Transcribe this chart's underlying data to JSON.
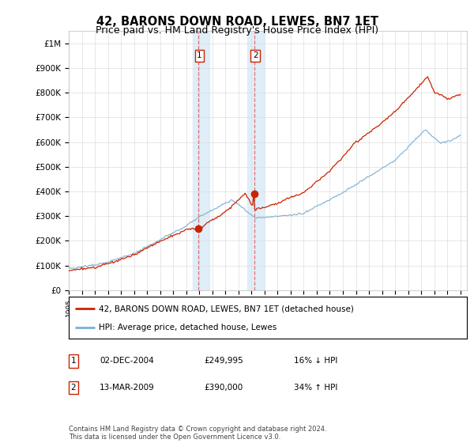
{
  "title": "42, BARONS DOWN ROAD, LEWES, BN7 1ET",
  "subtitle": "Price paid vs. HM Land Registry's House Price Index (HPI)",
  "ylabel_ticks": [
    "£0",
    "£100K",
    "£200K",
    "£300K",
    "£400K",
    "£500K",
    "£600K",
    "£700K",
    "£800K",
    "£900K",
    "£1M"
  ],
  "ytick_values": [
    0,
    100000,
    200000,
    300000,
    400000,
    500000,
    600000,
    700000,
    800000,
    900000,
    1000000
  ],
  "ylim": [
    0,
    1050000
  ],
  "xlim_start": 1995.0,
  "xlim_end": 2025.5,
  "x_ticks": [
    1995,
    1996,
    1997,
    1998,
    1999,
    2000,
    2001,
    2002,
    2003,
    2004,
    2005,
    2006,
    2007,
    2008,
    2009,
    2010,
    2011,
    2012,
    2013,
    2014,
    2015,
    2016,
    2017,
    2018,
    2019,
    2020,
    2021,
    2022,
    2023,
    2024,
    2025
  ],
  "hpi_color": "#7bafd4",
  "sale_color": "#cc2200",
  "sale1_x": 2004.92,
  "sale1_y": 249995,
  "sale2_x": 2009.2,
  "sale2_y": 390000,
  "shade_x1_start": 2004.5,
  "shade_x1_end": 2005.75,
  "shade_x2_start": 2008.7,
  "shade_x2_end": 2009.95,
  "legend_label_sale": "42, BARONS DOWN ROAD, LEWES, BN7 1ET (detached house)",
  "legend_label_hpi": "HPI: Average price, detached house, Lewes",
  "table_rows": [
    {
      "num": "1",
      "date": "02-DEC-2004",
      "price": "£249,995",
      "hpi": "16% ↓ HPI"
    },
    {
      "num": "2",
      "date": "13-MAR-2009",
      "price": "£390,000",
      "hpi": "34% ↑ HPI"
    }
  ],
  "footnote": "Contains HM Land Registry data © Crown copyright and database right 2024.\nThis data is licensed under the Open Government Licence v3.0.",
  "background_color": "#ffffff",
  "grid_color": "#dddddd"
}
